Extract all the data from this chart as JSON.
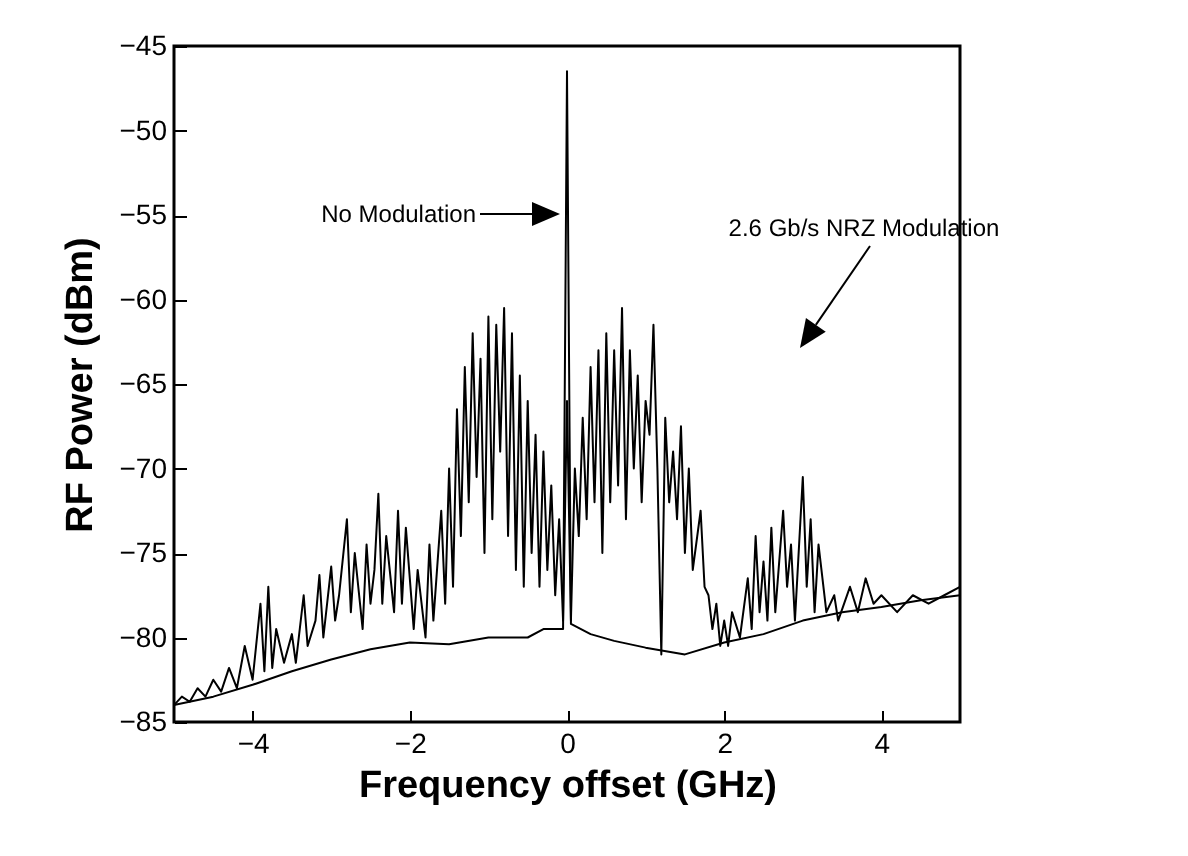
{
  "chart_data": {
    "type": "line",
    "xlabel": "Frequency offset (GHz)",
    "ylabel": "RF Power (dBm)",
    "xlim": [
      -5,
      5
    ],
    "xticks": [
      -4,
      -2,
      0,
      2,
      4
    ],
    "ylim": [
      -85,
      -45
    ],
    "yticks": [
      -85,
      -80,
      -75,
      -70,
      -65,
      -60,
      -55,
      -50,
      -45
    ],
    "grid": false,
    "annotations": [
      "No Modulation",
      "2.6 Gb/s NRZ Modulation"
    ],
    "series": [
      {
        "color": "#000000",
        "x": [
          -5,
          -4.5,
          -4,
          -3.5,
          -3,
          -2.5,
          -2,
          -1.5,
          -1,
          -0.5,
          -0.3,
          -0.05,
          0,
          0.05,
          0.3,
          0.6,
          1,
          1.5,
          2,
          2.5,
          3,
          3.5,
          4,
          4.5,
          5
        ],
        "values": [
          -84,
          -83.5,
          -82.8,
          -82,
          -81.3,
          -80.7,
          -80.3,
          -80.4,
          -80,
          -80,
          -79.5,
          -79.5,
          -46.5,
          -79.2,
          -79.8,
          -80.2,
          -80.6,
          -81,
          -80.3,
          -79.8,
          -79,
          -78.5,
          -78.2,
          -77.8,
          -77.5
        ]
      },
      {
        "color": "#000000",
        "x": [
          -5,
          -4.9,
          -4.8,
          -4.7,
          -4.6,
          -4.5,
          -4.4,
          -4.3,
          -4.2,
          -4.1,
          -4.0,
          -3.9,
          -3.85,
          -3.8,
          -3.75,
          -3.7,
          -3.6,
          -3.5,
          -3.45,
          -3.35,
          -3.3,
          -3.2,
          -3.15,
          -3.1,
          -3.0,
          -2.95,
          -2.9,
          -2.8,
          -2.75,
          -2.7,
          -2.6,
          -2.55,
          -2.5,
          -2.45,
          -2.4,
          -2.35,
          -2.3,
          -2.2,
          -2.15,
          -2.1,
          -2.05,
          -1.95,
          -1.9,
          -1.8,
          -1.75,
          -1.7,
          -1.6,
          -1.55,
          -1.5,
          -1.45,
          -1.4,
          -1.35,
          -1.3,
          -1.25,
          -1.2,
          -1.15,
          -1.1,
          -1.05,
          -1.0,
          -0.95,
          -0.9,
          -0.85,
          -0.8,
          -0.75,
          -0.7,
          -0.65,
          -0.6,
          -0.55,
          -0.5,
          -0.45,
          -0.4,
          -0.35,
          -0.3,
          -0.25,
          -0.2,
          -0.15,
          -0.1,
          -0.05,
          0,
          0.05,
          0.1,
          0.15,
          0.2,
          0.25,
          0.3,
          0.35,
          0.4,
          0.45,
          0.5,
          0.55,
          0.6,
          0.65,
          0.7,
          0.75,
          0.8,
          0.85,
          0.9,
          0.95,
          1.0,
          1.05,
          1.1,
          1.15,
          1.2,
          1.25,
          1.3,
          1.35,
          1.4,
          1.45,
          1.5,
          1.55,
          1.6,
          1.7,
          1.75,
          1.8,
          1.85,
          1.9,
          1.95,
          2.0,
          2.05,
          2.1,
          2.2,
          2.3,
          2.35,
          2.4,
          2.45,
          2.5,
          2.55,
          2.6,
          2.65,
          2.75,
          2.8,
          2.85,
          2.9,
          3.0,
          3.05,
          3.1,
          3.15,
          3.2,
          3.3,
          3.4,
          3.45,
          3.6,
          3.7,
          3.8,
          3.9,
          4.0,
          4.2,
          4.4,
          4.6,
          4.8,
          5
        ],
        "values": [
          -84,
          -83.5,
          -83.8,
          -83,
          -83.5,
          -82.5,
          -83.2,
          -81.8,
          -83,
          -80.5,
          -82.5,
          -78,
          -82,
          -77,
          -81.8,
          -79.5,
          -81.5,
          -79.8,
          -81.5,
          -77.5,
          -80.5,
          -79,
          -76.3,
          -80,
          -75.8,
          -79,
          -77.5,
          -73,
          -78.5,
          -75,
          -79.5,
          -74.5,
          -78,
          -76,
          -71.5,
          -78,
          -74,
          -78.5,
          -72.5,
          -78,
          -73.5,
          -79.5,
          -76,
          -80,
          -74.5,
          -79,
          -72.5,
          -78,
          -70,
          -77,
          -66.5,
          -74,
          -64,
          -72,
          -62,
          -70.5,
          -63.5,
          -75,
          -61,
          -73,
          -61.5,
          -69,
          -60.5,
          -74,
          -62,
          -76,
          -64.5,
          -77,
          -66,
          -75,
          -68,
          -77,
          -69,
          -76,
          -71,
          -77.5,
          -73,
          -79,
          -66,
          -79,
          -70,
          -74,
          -67,
          -73,
          -64,
          -72,
          -63,
          -75,
          -62,
          -72,
          -63,
          -71,
          -60.5,
          -73,
          -63,
          -70,
          -64.5,
          -72,
          -66,
          -68,
          -61.5,
          -70,
          -81,
          -67,
          -72,
          -69,
          -73,
          -67.5,
          -75,
          -70,
          -76,
          -72.5,
          -77,
          -77.5,
          -79.5,
          -78,
          -80.5,
          -79,
          -80.5,
          -78.5,
          -80,
          -76.5,
          -79.5,
          -74,
          -78.5,
          -75.5,
          -79,
          -73.5,
          -78.5,
          -72.5,
          -77,
          -74.5,
          -79,
          -70.5,
          -77,
          -73,
          -78.5,
          -74.5,
          -78.5,
          -77.5,
          -79,
          -77,
          -78.5,
          -76.5,
          -78,
          -77.5,
          -78.5,
          -77.5,
          -78,
          -77.5,
          -77
        ]
      }
    ]
  }
}
